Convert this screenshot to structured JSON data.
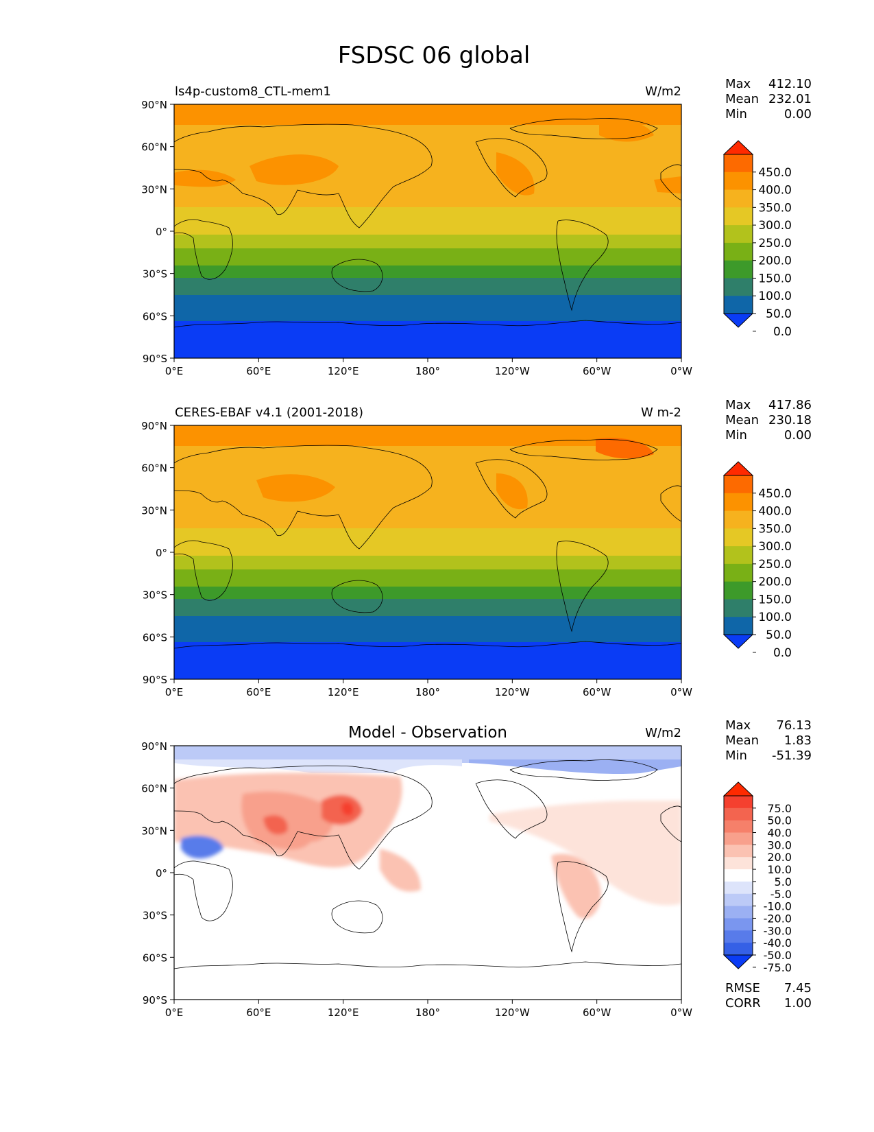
{
  "title": "FSDSC 06 global",
  "lat_labels": [
    "90°N",
    "60°N",
    "30°N",
    "0°",
    "30°S",
    "60°S",
    "90°S"
  ],
  "lon_labels": [
    "0°E",
    "60°E",
    "120°E",
    "180°",
    "120°W",
    "60°W",
    "0°W"
  ],
  "stat_keys": {
    "max": "Max",
    "mean": "Mean",
    "min": "Min"
  },
  "panels": [
    {
      "id": "model",
      "left_title": "ls4p-custom8_CTL-mem1",
      "center_title": "",
      "units": "W/m2",
      "stats": {
        "max": "412.10",
        "mean": "232.01",
        "min": "0.00"
      },
      "colorbar_labels": [
        "450.0",
        "400.0",
        "350.0",
        "300.0",
        "250.0",
        "200.0",
        "150.0",
        "100.0",
        "50.0",
        "0.0"
      ],
      "colorbar_colors": [
        "#ff2a00",
        "#fd6a00",
        "#fc9200",
        "#f6b21e",
        "#e5c825",
        "#b2c21c",
        "#79b016",
        "#3d9a2a",
        "#2f7f6a",
        "#0f66a8",
        "#0a3cf5"
      ]
    },
    {
      "id": "obs",
      "left_title": "CERES-EBAF v4.1 (2001-2018)",
      "center_title": "",
      "units": "W m-2",
      "stats": {
        "max": "417.86",
        "mean": "230.18",
        "min": "0.00"
      },
      "colorbar_labels": [
        "450.0",
        "400.0",
        "350.0",
        "300.0",
        "250.0",
        "200.0",
        "150.0",
        "100.0",
        "50.0",
        "0.0"
      ],
      "colorbar_colors": [
        "#ff2a00",
        "#fd6a00",
        "#fc9200",
        "#f6b21e",
        "#e5c825",
        "#b2c21c",
        "#79b016",
        "#3d9a2a",
        "#2f7f6a",
        "#0f66a8",
        "#0a3cf5"
      ]
    },
    {
      "id": "diff",
      "left_title": "",
      "center_title": "Model - Observation",
      "units": "W/m2",
      "stats": {
        "max": "76.13",
        "mean": "1.83",
        "min": "-51.39"
      },
      "colorbar_labels": [
        "75.0",
        "50.0",
        "40.0",
        "30.0",
        "20.0",
        "10.0",
        "5.0",
        "-5.0",
        "-10.0",
        "-20.0",
        "-30.0",
        "-40.0",
        "-50.0",
        "-75.0"
      ],
      "colorbar_colors": [
        "#ff2a00",
        "#f5402f",
        "#f3644f",
        "#f6806a",
        "#f8a08c",
        "#fbc2b2",
        "#fde3da",
        "#ffffff",
        "#dde4fb",
        "#bccaf7",
        "#9bb0f3",
        "#7a96ef",
        "#587bea",
        "#3560e6",
        "#0a3cf5"
      ],
      "metrics": {
        "rmse_label": "RMSE",
        "rmse": "7.45",
        "corr_label": "CORR",
        "corr": "1.00"
      }
    }
  ]
}
